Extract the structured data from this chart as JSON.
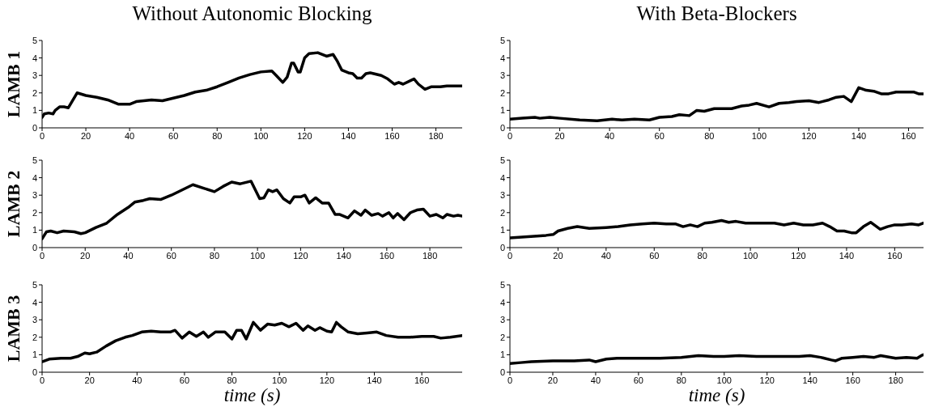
{
  "chart_data": [
    {
      "type": "line",
      "title": "Without Autonomic Blocking",
      "ylabel": "LAMB 1",
      "xlim": [
        0,
        192
      ],
      "ylim": [
        0,
        5
      ],
      "xticks": [
        0,
        20,
        40,
        60,
        80,
        100,
        120,
        140,
        160,
        180
      ],
      "yticks": [
        0,
        1,
        2,
        3,
        4,
        5
      ],
      "x": [
        0,
        1,
        3,
        5,
        6,
        8,
        10,
        12,
        16,
        20,
        25,
        30,
        35,
        40,
        43,
        50,
        55,
        60,
        65,
        70,
        75,
        80,
        85,
        90,
        95,
        100,
        105,
        107,
        110,
        112,
        114,
        115,
        117,
        118,
        120,
        122,
        126,
        130,
        133,
        135,
        137,
        140,
        142,
        144,
        146,
        148,
        150,
        155,
        158,
        161,
        163,
        165,
        170,
        172,
        175,
        178,
        182,
        185,
        192
      ],
      "series": [
        {
          "color": "#000000",
          "values": [
            0.6,
            0.8,
            0.85,
            0.8,
            1.0,
            1.2,
            1.2,
            1.15,
            2.0,
            1.85,
            1.75,
            1.6,
            1.35,
            1.35,
            1.5,
            1.6,
            1.55,
            1.7,
            1.85,
            2.05,
            2.15,
            2.35,
            2.6,
            2.85,
            3.05,
            3.2,
            3.25,
            3.0,
            2.6,
            2.9,
            3.7,
            3.7,
            3.2,
            3.2,
            4.0,
            4.25,
            4.3,
            4.1,
            4.2,
            3.8,
            3.3,
            3.15,
            3.1,
            2.85,
            2.85,
            3.1,
            3.15,
            3.0,
            2.8,
            2.5,
            2.6,
            2.5,
            2.8,
            2.5,
            2.2,
            2.35,
            2.35,
            2.4,
            2.4
          ]
        }
      ]
    },
    {
      "type": "line",
      "title": "With Beta-Blockers",
      "xlim": [
        0,
        166
      ],
      "ylim": [
        0,
        5
      ],
      "xticks": [
        0,
        20,
        40,
        60,
        80,
        100,
        120,
        140,
        160
      ],
      "yticks": [
        0,
        1,
        2,
        3,
        4,
        5
      ],
      "x": [
        0,
        5,
        10,
        12,
        16,
        20,
        28,
        35,
        41,
        45,
        50,
        56,
        60,
        65,
        68,
        72,
        75,
        78,
        82,
        86,
        89,
        93,
        96,
        99,
        104,
        108,
        112,
        115,
        120,
        124,
        128,
        131,
        134,
        137,
        140,
        143,
        146,
        149,
        152,
        155,
        160,
        162,
        164,
        166
      ],
      "series": [
        {
          "color": "#000000",
          "values": [
            0.5,
            0.55,
            0.6,
            0.55,
            0.6,
            0.55,
            0.45,
            0.4,
            0.5,
            0.45,
            0.5,
            0.45,
            0.6,
            0.65,
            0.75,
            0.7,
            1.0,
            0.95,
            1.1,
            1.1,
            1.1,
            1.25,
            1.3,
            1.4,
            1.2,
            1.4,
            1.45,
            1.5,
            1.55,
            1.45,
            1.6,
            1.75,
            1.8,
            1.5,
            2.3,
            2.15,
            2.1,
            1.95,
            1.95,
            2.05,
            2.05,
            2.05,
            1.95,
            1.95
          ]
        }
      ]
    },
    {
      "type": "line",
      "ylabel": "LAMB 2",
      "xlim": [
        0,
        195
      ],
      "ylim": [
        0,
        5
      ],
      "xticks": [
        0,
        20,
        40,
        60,
        80,
        100,
        120,
        140,
        160,
        180
      ],
      "yticks": [
        0,
        1,
        2,
        3,
        4,
        5
      ],
      "x": [
        0,
        2,
        4,
        7,
        10,
        15,
        18,
        20,
        25,
        30,
        35,
        40,
        43,
        47,
        50,
        55,
        60,
        65,
        70,
        75,
        80,
        84,
        88,
        92,
        97,
        99,
        101,
        103,
        105,
        107,
        109,
        112,
        115,
        117,
        120,
        122,
        124,
        127,
        130,
        133,
        136,
        138,
        142,
        145,
        148,
        150,
        153,
        156,
        158,
        161,
        163,
        165,
        168,
        171,
        174,
        177,
        180,
        183,
        186,
        188,
        191,
        193,
        195
      ],
      "series": [
        {
          "color": "#000000",
          "values": [
            0.5,
            0.9,
            0.95,
            0.85,
            0.95,
            0.9,
            0.8,
            0.85,
            1.15,
            1.4,
            1.9,
            2.3,
            2.6,
            2.7,
            2.8,
            2.75,
            3.0,
            3.3,
            3.6,
            3.4,
            3.2,
            3.5,
            3.75,
            3.65,
            3.8,
            3.3,
            2.8,
            2.85,
            3.3,
            3.2,
            3.3,
            2.8,
            2.55,
            2.9,
            2.9,
            3.0,
            2.55,
            2.85,
            2.55,
            2.55,
            1.9,
            1.9,
            1.7,
            2.1,
            1.85,
            2.15,
            1.85,
            1.95,
            1.8,
            2.0,
            1.7,
            1.95,
            1.6,
            2.0,
            2.15,
            2.2,
            1.8,
            1.9,
            1.7,
            1.9,
            1.8,
            1.85,
            1.8
          ]
        }
      ]
    },
    {
      "type": "line",
      "xlim": [
        0,
        172
      ],
      "ylim": [
        0,
        5
      ],
      "xticks": [
        0,
        20,
        40,
        60,
        80,
        100,
        120,
        140,
        160
      ],
      "yticks": [
        0,
        1,
        2,
        3,
        4,
        5
      ],
      "x": [
        0,
        5,
        10,
        15,
        18,
        20,
        24,
        28,
        33,
        40,
        45,
        50,
        55,
        60,
        65,
        69,
        72,
        75,
        78,
        81,
        84,
        88,
        91,
        94,
        98,
        102,
        106,
        110,
        114,
        118,
        122,
        126,
        130,
        133,
        136,
        139,
        142,
        144,
        147,
        150,
        154,
        157,
        160,
        163,
        167,
        170,
        172
      ],
      "series": [
        {
          "color": "#000000",
          "values": [
            0.55,
            0.6,
            0.65,
            0.7,
            0.75,
            0.95,
            1.1,
            1.2,
            1.1,
            1.15,
            1.2,
            1.3,
            1.35,
            1.4,
            1.35,
            1.35,
            1.2,
            1.3,
            1.2,
            1.4,
            1.45,
            1.55,
            1.45,
            1.5,
            1.4,
            1.4,
            1.4,
            1.4,
            1.3,
            1.4,
            1.3,
            1.3,
            1.4,
            1.2,
            0.95,
            0.95,
            0.85,
            0.85,
            1.2,
            1.45,
            1.05,
            1.2,
            1.3,
            1.3,
            1.35,
            1.3,
            1.4
          ]
        }
      ]
    },
    {
      "type": "line",
      "ylabel": "LAMB 3",
      "xlabel": "time (s)",
      "xlim": [
        0,
        177
      ],
      "ylim": [
        0,
        5
      ],
      "xticks": [
        0,
        20,
        40,
        60,
        80,
        100,
        120,
        140,
        160
      ],
      "yticks": [
        0,
        1,
        2,
        3,
        4,
        5
      ],
      "x": [
        0,
        3,
        8,
        12,
        15,
        18,
        20,
        23,
        27,
        31,
        35,
        38,
        42,
        46,
        50,
        54,
        56,
        59,
        62,
        65,
        68,
        70,
        73,
        77,
        80,
        82,
        84,
        86,
        89,
        92,
        95,
        98,
        101,
        104,
        107,
        110,
        112,
        115,
        117,
        120,
        122,
        124,
        126,
        129,
        133,
        137,
        141,
        145,
        150,
        155,
        160,
        165,
        168,
        172,
        177
      ],
      "series": [
        {
          "color": "#000000",
          "values": [
            0.6,
            0.75,
            0.8,
            0.8,
            0.9,
            1.1,
            1.05,
            1.15,
            1.5,
            1.8,
            2.0,
            2.1,
            2.3,
            2.35,
            2.3,
            2.3,
            2.4,
            1.95,
            2.3,
            2.05,
            2.3,
            2.0,
            2.3,
            2.3,
            1.9,
            2.4,
            2.4,
            1.9,
            2.85,
            2.4,
            2.75,
            2.7,
            2.8,
            2.6,
            2.8,
            2.4,
            2.65,
            2.4,
            2.55,
            2.35,
            2.3,
            2.85,
            2.6,
            2.3,
            2.2,
            2.25,
            2.3,
            2.1,
            2.0,
            2.0,
            2.05,
            2.05,
            1.95,
            2.0,
            2.1
          ]
        }
      ]
    },
    {
      "type": "line",
      "xlabel": "time (s)",
      "xlim": [
        0,
        193
      ],
      "ylim": [
        0,
        5
      ],
      "xticks": [
        0,
        20,
        40,
        60,
        80,
        100,
        120,
        140,
        160,
        180
      ],
      "yticks": [
        0,
        1,
        2,
        3,
        4,
        5
      ],
      "x": [
        0,
        5,
        10,
        20,
        30,
        37,
        40,
        45,
        50,
        60,
        70,
        80,
        88,
        95,
        100,
        107,
        115,
        125,
        135,
        140,
        145,
        150,
        152,
        155,
        160,
        165,
        170,
        173,
        180,
        185,
        190,
        192,
        193
      ],
      "series": [
        {
          "color": "#000000",
          "values": [
            0.5,
            0.55,
            0.6,
            0.65,
            0.65,
            0.7,
            0.6,
            0.75,
            0.8,
            0.8,
            0.8,
            0.85,
            0.95,
            0.9,
            0.9,
            0.95,
            0.9,
            0.9,
            0.9,
            0.95,
            0.85,
            0.7,
            0.65,
            0.8,
            0.85,
            0.9,
            0.85,
            0.95,
            0.8,
            0.85,
            0.8,
            0.95,
            1.0
          ]
        }
      ]
    }
  ]
}
